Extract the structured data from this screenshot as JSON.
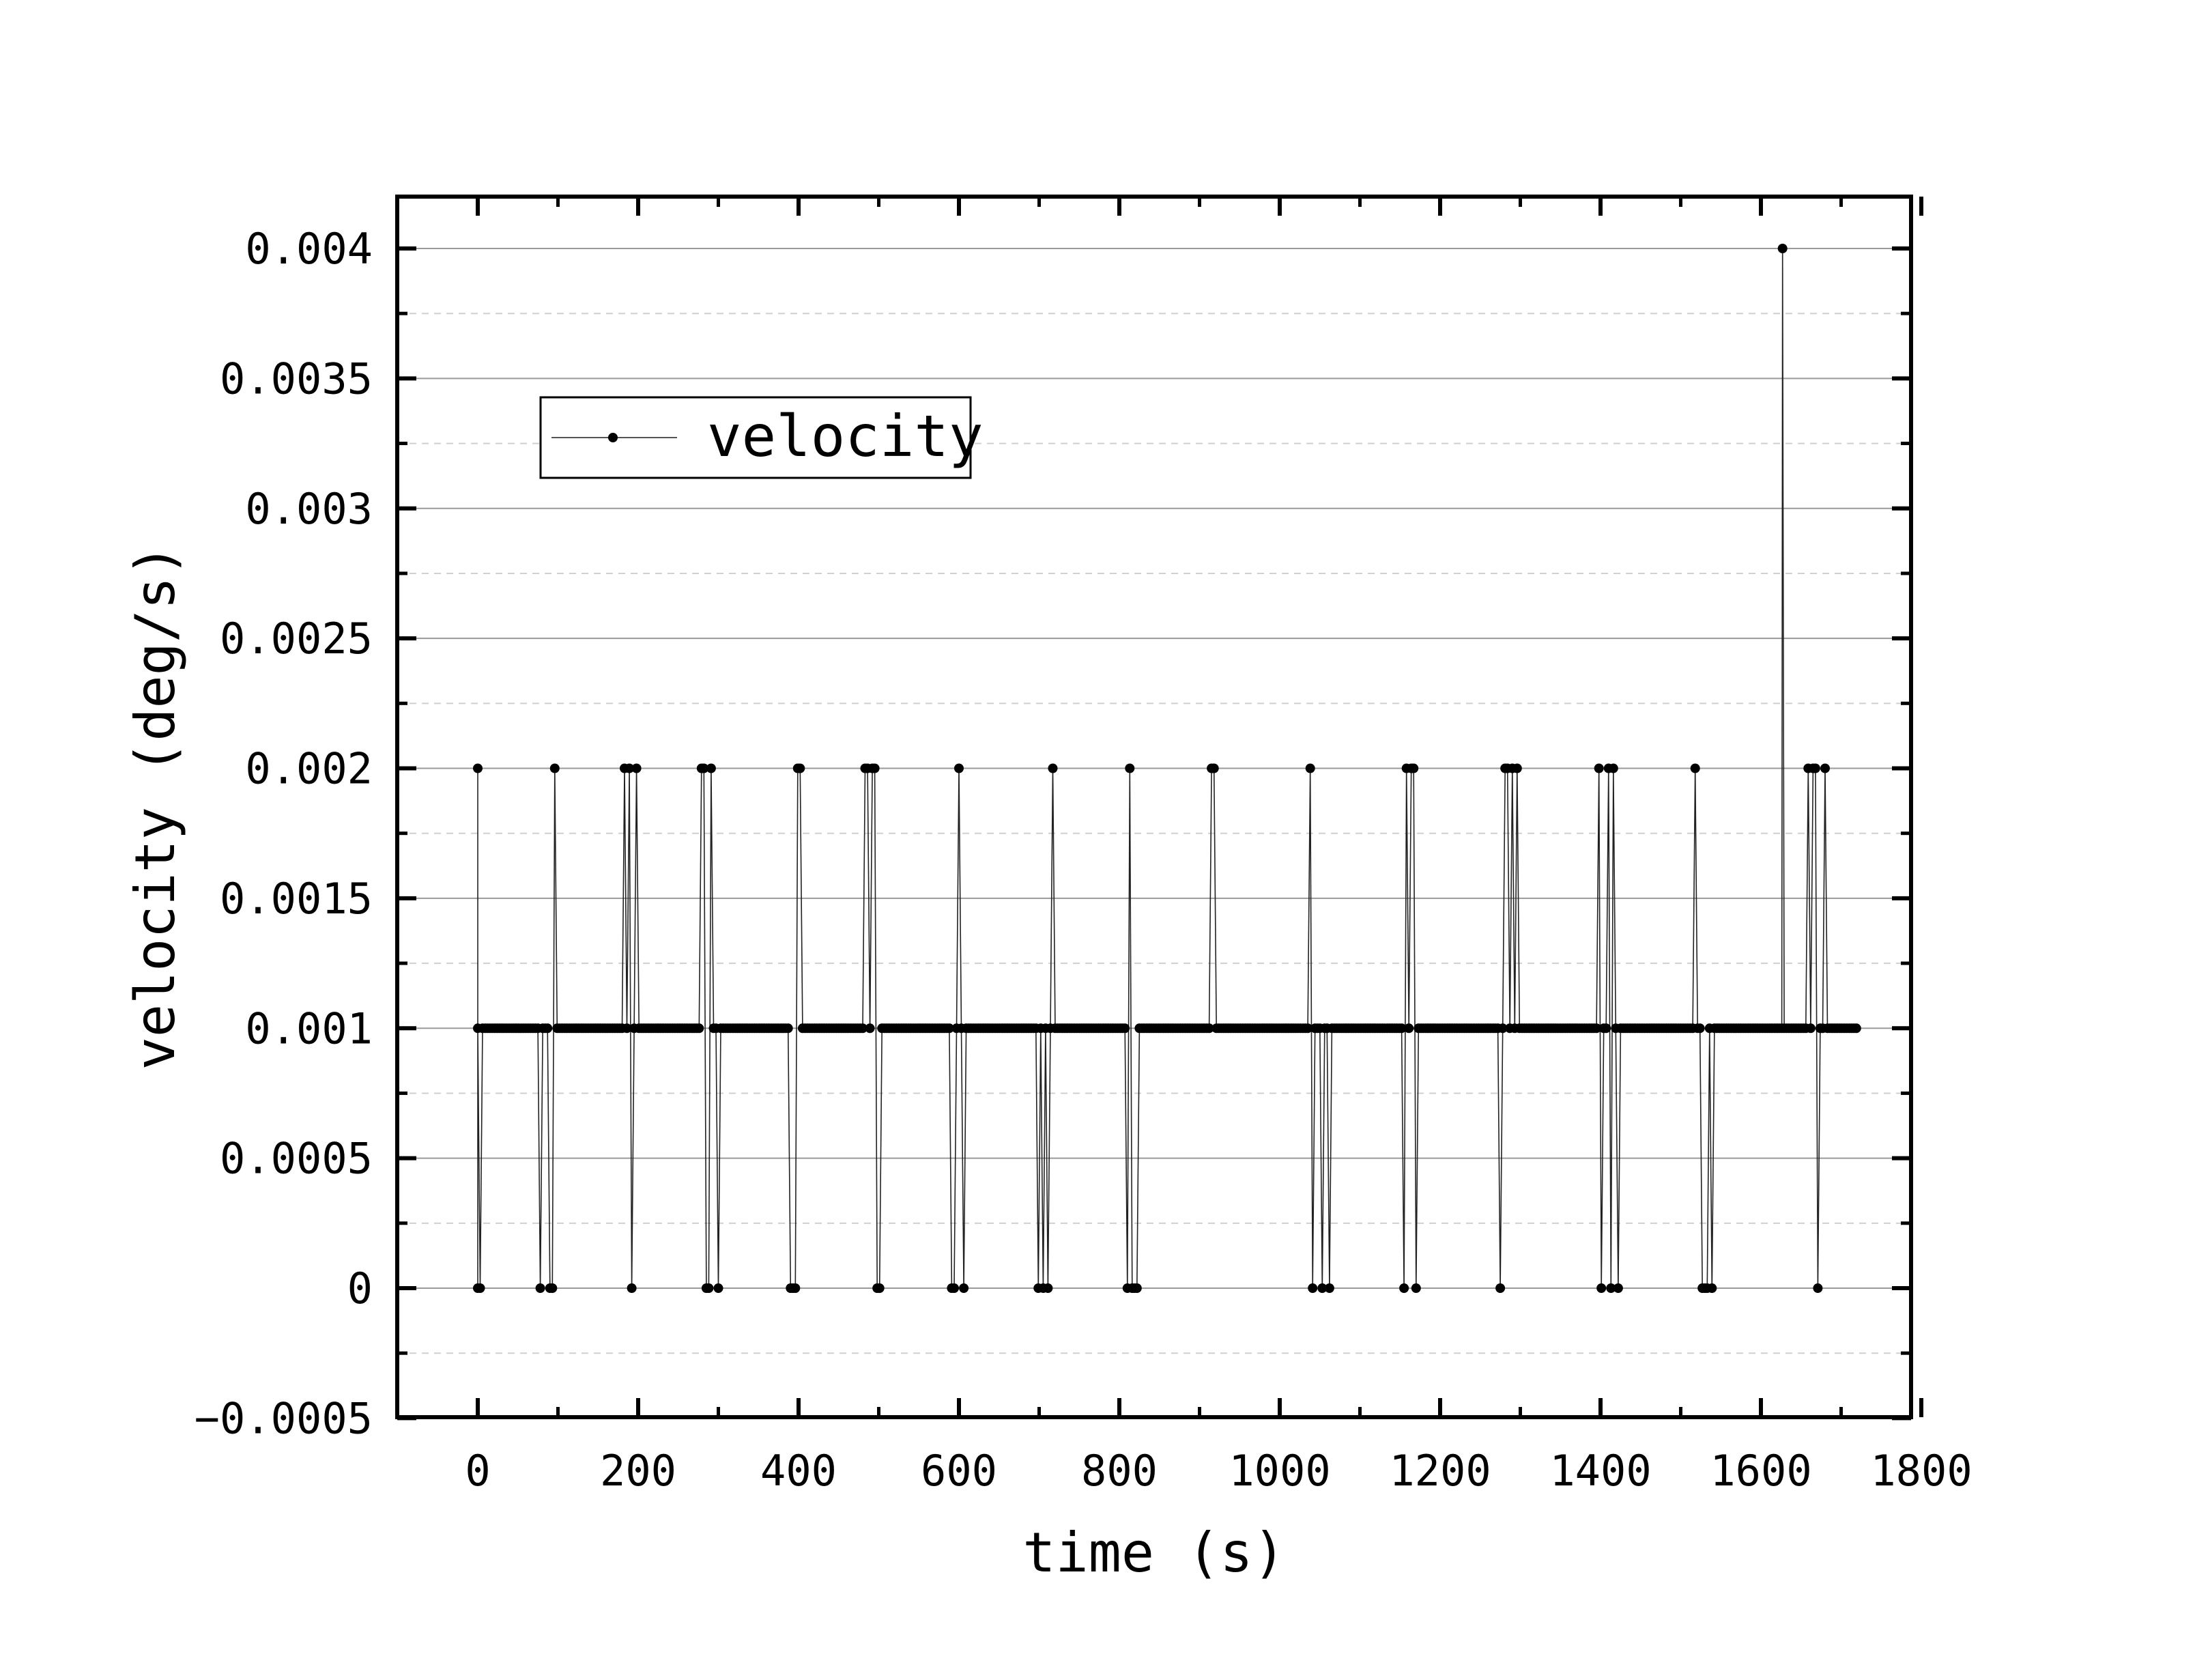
{
  "chart_data": {
    "type": "line",
    "title": "",
    "xlabel": "time (s)",
    "ylabel": "velocity (deg/s)",
    "xlim": [
      -100,
      1800
    ],
    "ylim": [
      -0.0005,
      0.0042
    ],
    "xticks": [
      0,
      200,
      400,
      600,
      800,
      1000,
      1200,
      1400,
      1600,
      1800
    ],
    "xtick_labels": [
      "0",
      "200",
      "400",
      "600",
      "800",
      "1000",
      "1200",
      "1400",
      "1600",
      "1800"
    ],
    "yticks": [
      -0.0005,
      0,
      0.0005,
      0.001,
      0.0015,
      0.002,
      0.0025,
      0.003,
      0.0035,
      0.004
    ],
    "ytick_labels": [
      "−0.0005",
      "0",
      "0.0005",
      "0.001",
      "0.0015",
      "0.002",
      "0.0025",
      "0.003",
      "0.0035",
      "0.004"
    ],
    "grid": "major solid, minor dashed (horizontal)",
    "legend_position": "top-left",
    "series": [
      {
        "name": "velocity",
        "color": "#000000",
        "marker": "dot",
        "baseline_value": 0.001,
        "time_range": [
          0,
          1720
        ],
        "burst_centers": [
          0,
          90,
          190,
          290,
          395,
          495,
          600,
          710,
          810,
          925,
          1050,
          1165,
          1285,
          1410,
          1530,
          1670
        ],
        "high_value": 0.002,
        "low_value": 0,
        "spike": {
          "x": 1627,
          "y": 0.004
        }
      }
    ]
  }
}
